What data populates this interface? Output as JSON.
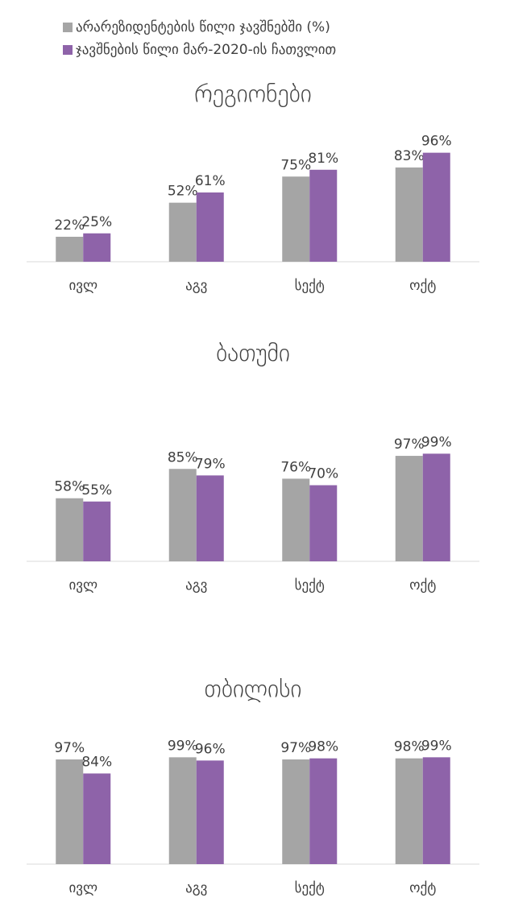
{
  "chart_data": [
    {
      "type": "bar",
      "title": "რეგიონები",
      "categories": [
        "ივლ",
        "აგვ",
        "სექტ",
        "ოქტ"
      ],
      "series": [
        {
          "name": "არარეზიდენტების წილი ჯავშნებში (%)",
          "color": "#a5a5a5",
          "values": [
            22,
            52,
            75,
            83
          ],
          "value_labels": [
            "22%",
            "52%",
            "75%",
            "83%"
          ]
        },
        {
          "name": "ჯავშნების წილი მარ-2020-ის ჩათვლით",
          "color": "#8e63a9",
          "values": [
            25,
            61,
            81,
            96
          ],
          "value_labels": [
            "25%",
            "61%",
            "81%",
            "96%"
          ]
        }
      ],
      "ylim": [
        0,
        100
      ]
    },
    {
      "type": "bar",
      "title": "ბათუმი",
      "categories": [
        "ივლ",
        "აგვ",
        "სექტ",
        "ოქტ"
      ],
      "series": [
        {
          "color": "#a5a5a5",
          "values": [
            58,
            85,
            76,
            97
          ],
          "value_labels": [
            "58%",
            "85%",
            "76%",
            "97%"
          ]
        },
        {
          "color": "#8e63a9",
          "values": [
            55,
            79,
            70,
            99
          ],
          "value_labels": [
            "55%",
            "79%",
            "70%",
            "99%"
          ]
        }
      ],
      "ylim": [
        0,
        100
      ]
    },
    {
      "type": "bar",
      "title": "თბილისი",
      "categories": [
        "ივლ",
        "აგვ",
        "სექტ",
        "ოქტ"
      ],
      "series": [
        {
          "color": "#a5a5a5",
          "values": [
            97,
            99,
            97,
            98
          ],
          "value_labels": [
            "97%",
            "99%",
            "97%",
            "98%"
          ]
        },
        {
          "color": "#8e63a9",
          "values": [
            84,
            96,
            98,
            99
          ],
          "value_labels": [
            "84%",
            "96%",
            "98%",
            "99%"
          ]
        }
      ],
      "ylim": [
        0,
        100
      ]
    }
  ]
}
